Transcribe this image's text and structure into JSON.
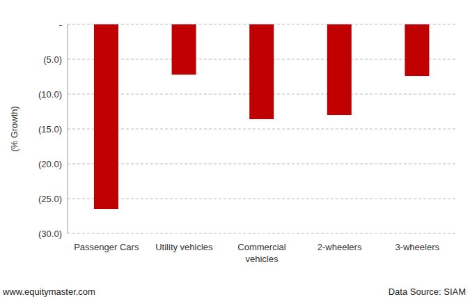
{
  "chart_data": {
    "type": "bar",
    "y_label": "(% Growth)",
    "footer": "www.equitymaster.com",
    "source": "Data Source: SIAM",
    "categories": [
      "Passenger Cars",
      "Utility vehicles",
      "Commercial vehicles",
      "2-wheelers",
      "3-wheelers"
    ],
    "values": [
      -26.5,
      -7.2,
      -13.6,
      -13.0,
      -7.4
    ],
    "color": "#c00000",
    "ylim": [
      -30,
      0
    ],
    "yticks": [
      {
        "value": 0,
        "label": "-"
      },
      {
        "value": -5,
        "label": "(5.0)"
      },
      {
        "value": -10,
        "label": "(10.0)"
      },
      {
        "value": -15,
        "label": "(15.0)"
      },
      {
        "value": -20,
        "label": "(20.0)"
      },
      {
        "value": -25,
        "label": "(25.0)"
      },
      {
        "value": -30,
        "label": "(30.0)"
      }
    ],
    "grid": true
  }
}
